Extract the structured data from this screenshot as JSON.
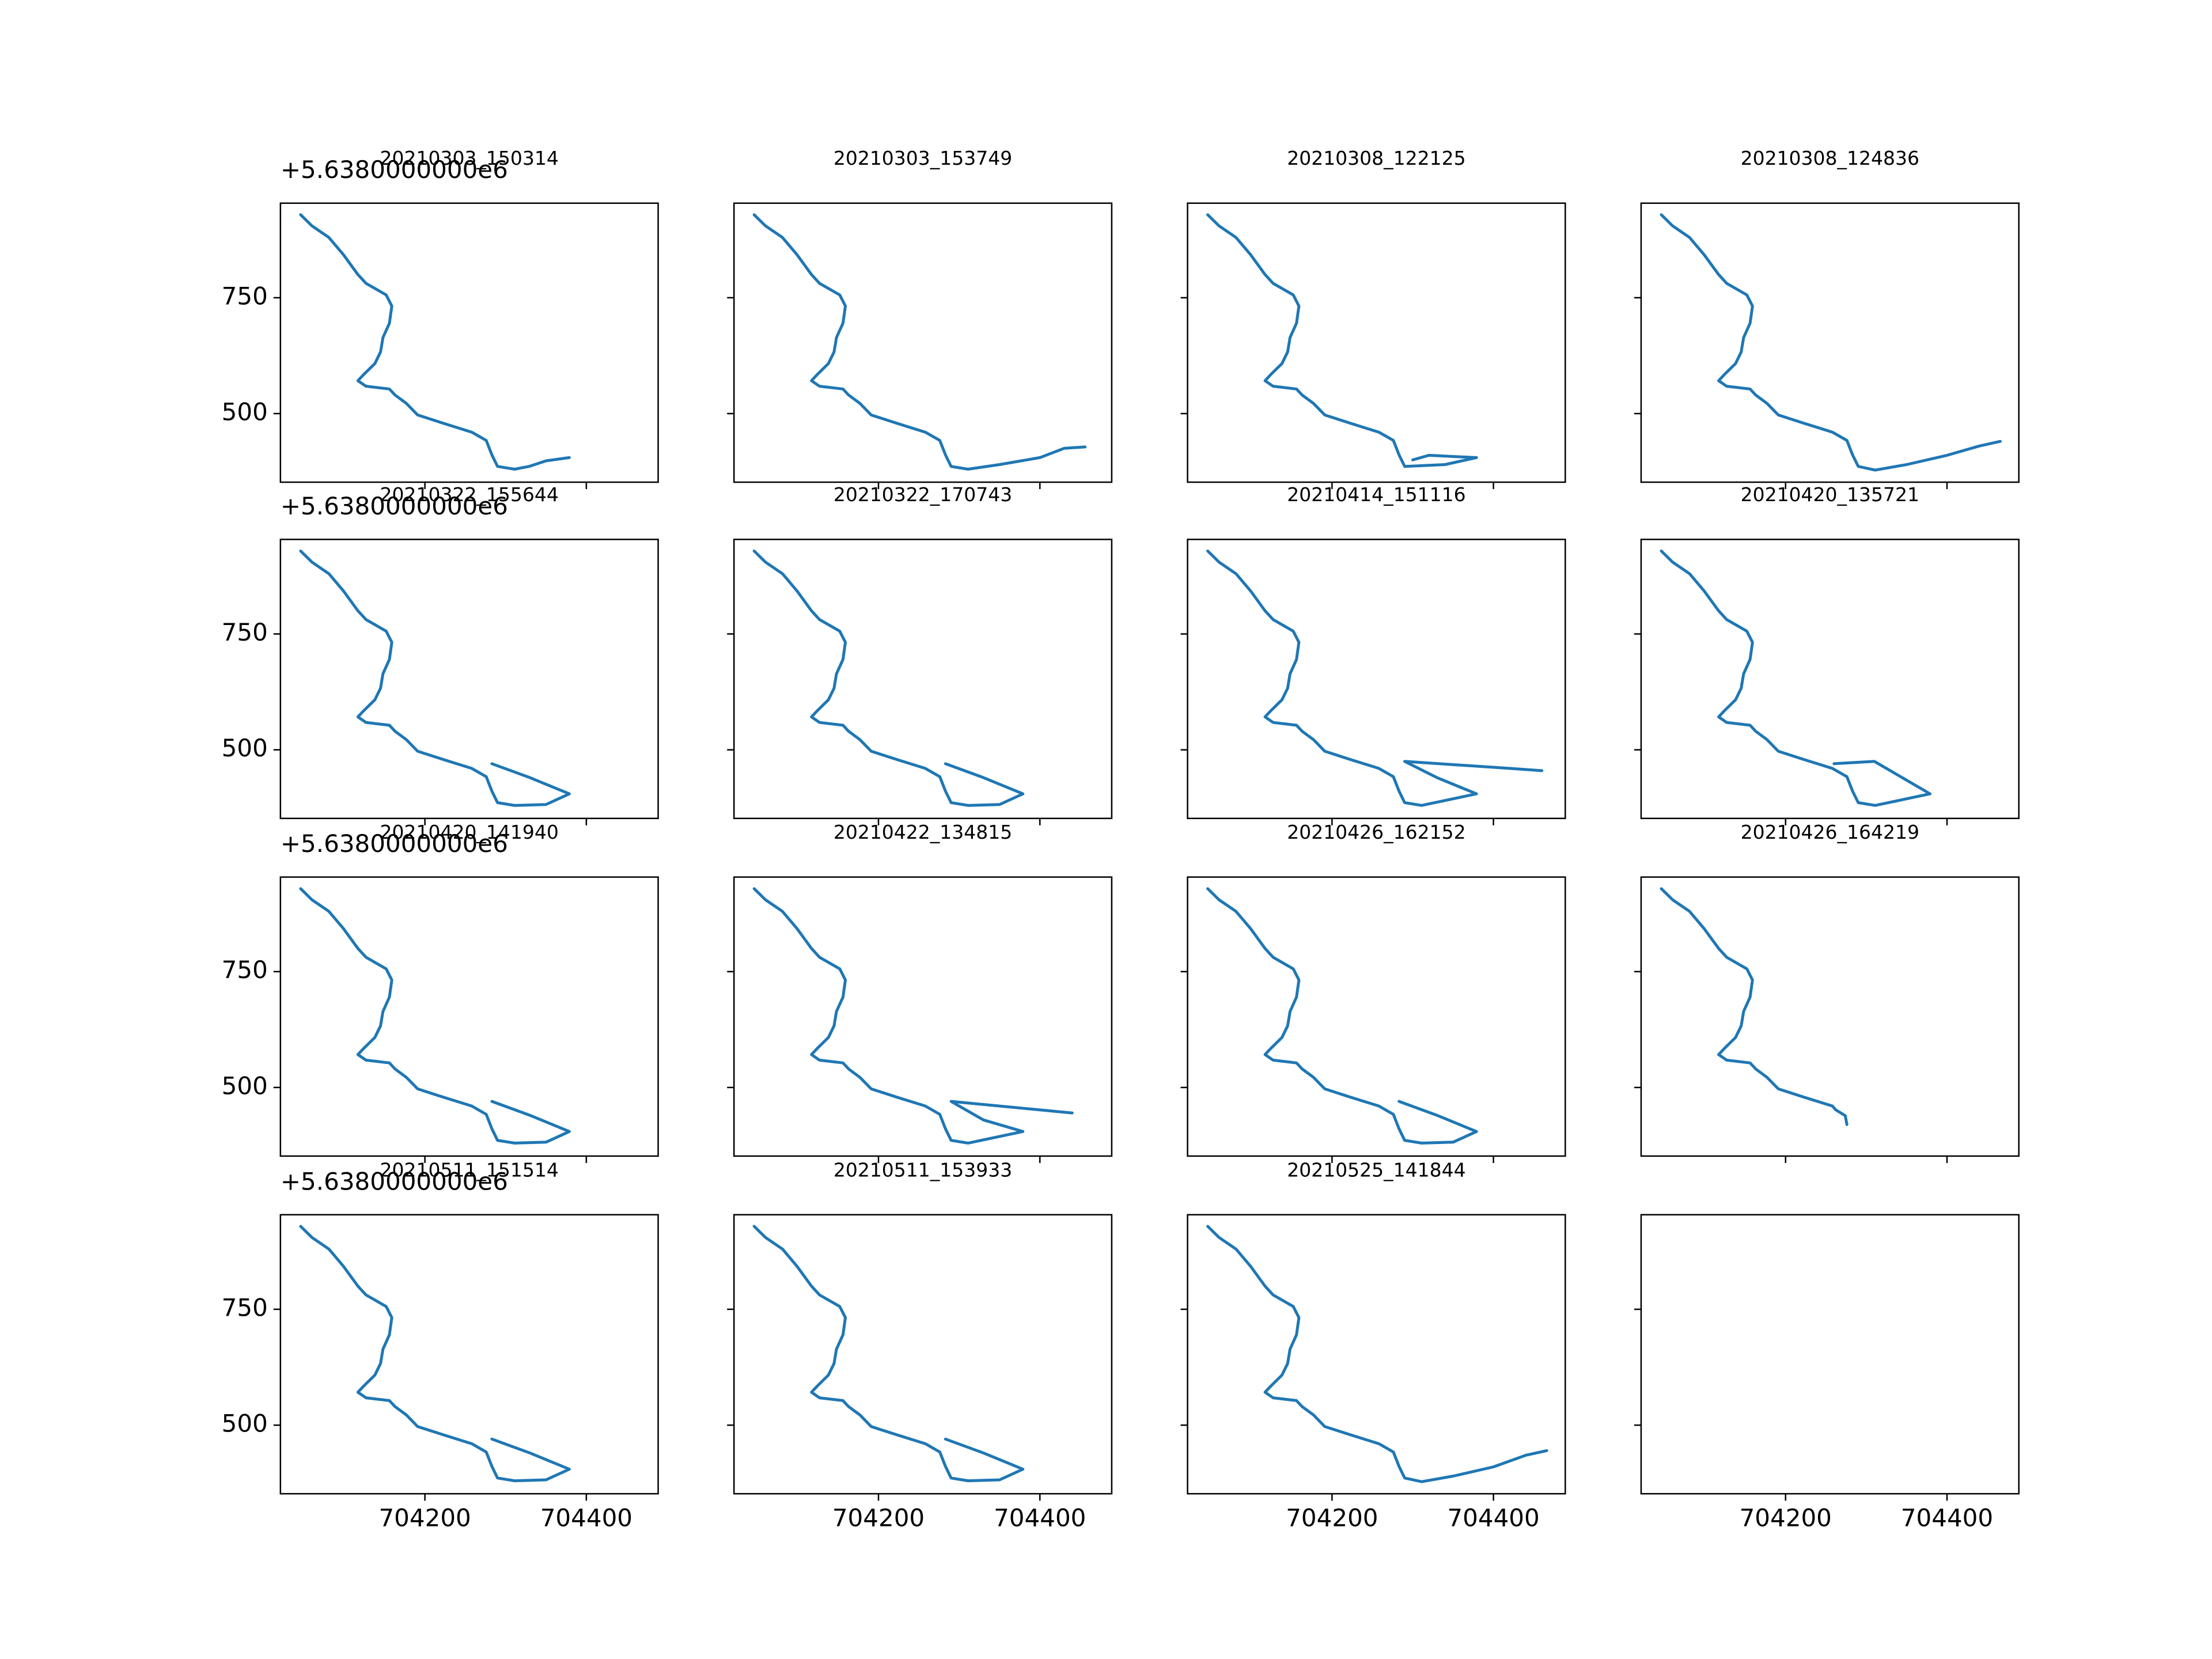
{
  "chart_data": [
    {
      "type": "line",
      "title": "20210303_150314",
      "offset_text": "+5.6380000000e6",
      "color": "#1f77b4",
      "x": [
        704046,
        704060,
        704081,
        704099,
        704117,
        704127,
        704152,
        704159,
        704156,
        704148,
        704145,
        704138,
        704124,
        704117,
        704127,
        704156,
        704163,
        704177,
        704191,
        704223,
        704258,
        704276,
        704283,
        704290,
        704311,
        704329,
        704350,
        704379
      ],
      "y": [
        929,
        905,
        880,
        843,
        800,
        781,
        756,
        732,
        695,
        664,
        633,
        608,
        584,
        571,
        559,
        553,
        540,
        522,
        497,
        479,
        460,
        442,
        411,
        386,
        380,
        386,
        398,
        405
      ],
      "xlim": [
        704021,
        704489
      ],
      "ylim": [
        352,
        954
      ],
      "xticks": [
        704200,
        704400
      ],
      "yticks": [
        500,
        750
      ]
    },
    {
      "type": "line",
      "title": "20210303_153749",
      "color": "#1f77b4",
      "x": [
        704046,
        704060,
        704081,
        704099,
        704117,
        704127,
        704152,
        704159,
        704156,
        704148,
        704145,
        704138,
        704124,
        704117,
        704127,
        704156,
        704163,
        704177,
        704191,
        704223,
        704258,
        704276,
        704283,
        704290,
        704311,
        704350,
        704400,
        704430,
        704456
      ],
      "y": [
        929,
        905,
        880,
        843,
        800,
        781,
        756,
        732,
        695,
        664,
        633,
        608,
        584,
        571,
        559,
        553,
        540,
        522,
        497,
        479,
        460,
        442,
        411,
        386,
        380,
        390,
        405,
        425,
        428
      ],
      "xlim": [
        704021,
        704489
      ],
      "ylim": [
        352,
        954
      ],
      "xticks": [
        704200,
        704400
      ],
      "yticks": [
        500,
        750
      ]
    },
    {
      "type": "line",
      "title": "20210308_122125",
      "color": "#1f77b4",
      "x": [
        704046,
        704060,
        704081,
        704099,
        704117,
        704127,
        704152,
        704159,
        704156,
        704148,
        704145,
        704138,
        704124,
        704117,
        704127,
        704156,
        704163,
        704177,
        704191,
        704223,
        704258,
        704276,
        704283,
        704290,
        704340,
        704379,
        704320,
        704300
      ],
      "y": [
        929,
        905,
        880,
        843,
        800,
        781,
        756,
        732,
        695,
        664,
        633,
        608,
        584,
        571,
        559,
        553,
        540,
        522,
        497,
        479,
        460,
        442,
        411,
        386,
        390,
        405,
        410,
        400
      ],
      "xlim": [
        704021,
        704489
      ],
      "ylim": [
        352,
        954
      ],
      "xticks": [
        704200,
        704400
      ],
      "yticks": [
        500,
        750
      ]
    },
    {
      "type": "line",
      "title": "20210308_124836",
      "color": "#1f77b4",
      "x": [
        704046,
        704060,
        704081,
        704099,
        704117,
        704127,
        704152,
        704159,
        704156,
        704148,
        704145,
        704138,
        704124,
        704117,
        704127,
        704156,
        704163,
        704177,
        704191,
        704223,
        704258,
        704276,
        704283,
        704290,
        704311,
        704350,
        704400,
        704440,
        704466
      ],
      "y": [
        929,
        905,
        880,
        843,
        800,
        781,
        756,
        732,
        695,
        664,
        633,
        608,
        584,
        571,
        559,
        553,
        540,
        522,
        497,
        479,
        460,
        442,
        411,
        386,
        378,
        390,
        410,
        430,
        440
      ],
      "xlim": [
        704021,
        704489
      ],
      "ylim": [
        352,
        954
      ],
      "xticks": [
        704200,
        704400
      ],
      "yticks": [
        500,
        750
      ]
    },
    {
      "type": "line",
      "title": "20210322_155644",
      "offset_text": "+5.6380000000e6",
      "color": "#1f77b4",
      "x": [
        704046,
        704060,
        704081,
        704099,
        704117,
        704127,
        704152,
        704159,
        704156,
        704148,
        704145,
        704138,
        704124,
        704117,
        704127,
        704156,
        704163,
        704177,
        704191,
        704223,
        704258,
        704276,
        704283,
        704290,
        704311,
        704350,
        704379,
        704330,
        704283
      ],
      "y": [
        929,
        905,
        880,
        843,
        800,
        781,
        756,
        732,
        695,
        664,
        633,
        608,
        584,
        571,
        559,
        553,
        540,
        522,
        497,
        479,
        460,
        442,
        411,
        386,
        380,
        382,
        405,
        440,
        470
      ],
      "xlim": [
        704021,
        704489
      ],
      "ylim": [
        352,
        954
      ],
      "xticks": [
        704200,
        704400
      ],
      "yticks": [
        500,
        750
      ]
    },
    {
      "type": "line",
      "title": "20210322_170743",
      "color": "#1f77b4",
      "x": [
        704046,
        704060,
        704081,
        704099,
        704117,
        704127,
        704152,
        704159,
        704156,
        704148,
        704145,
        704138,
        704124,
        704117,
        704127,
        704156,
        704163,
        704177,
        704191,
        704223,
        704258,
        704276,
        704283,
        704290,
        704311,
        704350,
        704379,
        704330,
        704283
      ],
      "y": [
        929,
        905,
        880,
        843,
        800,
        781,
        756,
        732,
        695,
        664,
        633,
        608,
        584,
        571,
        559,
        553,
        540,
        522,
        497,
        479,
        460,
        442,
        411,
        386,
        380,
        382,
        405,
        440,
        470
      ],
      "xlim": [
        704021,
        704489
      ],
      "ylim": [
        352,
        954
      ],
      "xticks": [
        704200,
        704400
      ],
      "yticks": [
        500,
        750
      ]
    },
    {
      "type": "line",
      "title": "20210414_151116",
      "color": "#1f77b4",
      "x": [
        704046,
        704060,
        704081,
        704099,
        704117,
        704127,
        704152,
        704159,
        704156,
        704148,
        704145,
        704138,
        704124,
        704117,
        704127,
        704156,
        704163,
        704177,
        704191,
        704223,
        704258,
        704276,
        704283,
        704290,
        704311,
        704379,
        704330,
        704290,
        704420,
        704460
      ],
      "y": [
        929,
        905,
        880,
        843,
        800,
        781,
        756,
        732,
        695,
        664,
        633,
        608,
        584,
        571,
        559,
        553,
        540,
        522,
        497,
        479,
        460,
        442,
        411,
        386,
        380,
        405,
        440,
        475,
        460,
        455
      ],
      "xlim": [
        704021,
        704489
      ],
      "ylim": [
        352,
        954
      ],
      "xticks": [
        704200,
        704400
      ],
      "yticks": [
        500,
        750
      ]
    },
    {
      "type": "line",
      "title": "20210420_135721",
      "color": "#1f77b4",
      "x": [
        704046,
        704060,
        704081,
        704099,
        704117,
        704127,
        704152,
        704159,
        704156,
        704148,
        704145,
        704138,
        704124,
        704117,
        704127,
        704156,
        704163,
        704177,
        704191,
        704223,
        704258,
        704276,
        704283,
        704290,
        704311,
        704379,
        704310,
        704260
      ],
      "y": [
        929,
        905,
        880,
        843,
        800,
        781,
        756,
        732,
        695,
        664,
        633,
        608,
        584,
        571,
        559,
        553,
        540,
        522,
        497,
        479,
        460,
        442,
        411,
        386,
        380,
        405,
        475,
        470
      ],
      "xlim": [
        704021,
        704489
      ],
      "ylim": [
        352,
        954
      ],
      "xticks": [
        704200,
        704400
      ],
      "yticks": [
        500,
        750
      ]
    },
    {
      "type": "line",
      "title": "20210420_141940",
      "offset_text": "+5.6380000000e6",
      "color": "#1f77b4",
      "x": [
        704046,
        704060,
        704081,
        704099,
        704117,
        704127,
        704152,
        704159,
        704156,
        704148,
        704145,
        704138,
        704124,
        704117,
        704127,
        704156,
        704163,
        704177,
        704191,
        704223,
        704258,
        704276,
        704283,
        704290,
        704311,
        704350,
        704379,
        704330,
        704283
      ],
      "y": [
        929,
        905,
        880,
        843,
        800,
        781,
        756,
        732,
        695,
        664,
        633,
        608,
        584,
        571,
        559,
        553,
        540,
        522,
        497,
        479,
        460,
        442,
        411,
        386,
        380,
        382,
        405,
        440,
        470
      ],
      "xlim": [
        704021,
        704489
      ],
      "ylim": [
        352,
        954
      ],
      "xticks": [
        704200,
        704400
      ],
      "yticks": [
        500,
        750
      ]
    },
    {
      "type": "line",
      "title": "20210422_134815",
      "color": "#1f77b4",
      "x": [
        704046,
        704060,
        704081,
        704099,
        704117,
        704127,
        704152,
        704159,
        704156,
        704148,
        704145,
        704138,
        704124,
        704117,
        704127,
        704156,
        704163,
        704177,
        704191,
        704223,
        704258,
        704276,
        704283,
        704290,
        704311,
        704379,
        704330,
        704290,
        704440
      ],
      "y": [
        929,
        905,
        880,
        843,
        800,
        781,
        756,
        732,
        695,
        664,
        633,
        608,
        584,
        571,
        559,
        553,
        540,
        522,
        497,
        479,
        460,
        442,
        411,
        386,
        380,
        405,
        430,
        470,
        445
      ],
      "xlim": [
        704021,
        704489
      ],
      "ylim": [
        352,
        954
      ],
      "xticks": [
        704200,
        704400
      ],
      "yticks": [
        500,
        750
      ]
    },
    {
      "type": "line",
      "title": "20210426_162152",
      "color": "#1f77b4",
      "x": [
        704046,
        704060,
        704081,
        704099,
        704117,
        704127,
        704152,
        704159,
        704156,
        704148,
        704145,
        704138,
        704124,
        704117,
        704127,
        704156,
        704163,
        704177,
        704191,
        704223,
        704258,
        704276,
        704283,
        704290,
        704311,
        704350,
        704379,
        704330,
        704283
      ],
      "y": [
        929,
        905,
        880,
        843,
        800,
        781,
        756,
        732,
        695,
        664,
        633,
        608,
        584,
        571,
        559,
        553,
        540,
        522,
        497,
        479,
        460,
        442,
        411,
        386,
        380,
        382,
        405,
        440,
        470
      ],
      "xlim": [
        704021,
        704489
      ],
      "ylim": [
        352,
        954
      ],
      "xticks": [
        704200,
        704400
      ],
      "yticks": [
        500,
        750
      ]
    },
    {
      "type": "line",
      "title": "20210426_164219",
      "color": "#1f77b4",
      "x": [
        704046,
        704060,
        704081,
        704099,
        704117,
        704127,
        704152,
        704159,
        704156,
        704148,
        704145,
        704138,
        704124,
        704117,
        704127,
        704156,
        704163,
        704177,
        704191,
        704223,
        704258,
        704262,
        704274,
        704276
      ],
      "y": [
        929,
        905,
        880,
        843,
        800,
        781,
        756,
        732,
        695,
        664,
        633,
        608,
        584,
        571,
        559,
        553,
        540,
        522,
        497,
        479,
        460,
        452,
        439,
        420
      ],
      "xlim": [
        704021,
        704489
      ],
      "ylim": [
        352,
        954
      ],
      "xticks": [
        704200,
        704400
      ],
      "yticks": [
        500,
        750
      ]
    },
    {
      "type": "line",
      "title": "20210511_151514",
      "offset_text": "+5.6380000000e6",
      "color": "#1f77b4",
      "x": [
        704046,
        704060,
        704081,
        704099,
        704117,
        704127,
        704152,
        704159,
        704156,
        704148,
        704145,
        704138,
        704124,
        704117,
        704127,
        704156,
        704163,
        704177,
        704191,
        704223,
        704258,
        704276,
        704283,
        704290,
        704311,
        704350,
        704379,
        704330,
        704283
      ],
      "y": [
        929,
        905,
        880,
        843,
        800,
        781,
        756,
        732,
        695,
        664,
        633,
        608,
        584,
        571,
        559,
        553,
        540,
        522,
        497,
        479,
        460,
        442,
        411,
        386,
        380,
        382,
        405,
        440,
        470
      ],
      "xlim": [
        704021,
        704489
      ],
      "ylim": [
        352,
        954
      ],
      "xticks": [
        704200,
        704400
      ],
      "yticks": [
        500,
        750
      ]
    },
    {
      "type": "line",
      "title": "20210511_153933",
      "color": "#1f77b4",
      "x": [
        704046,
        704060,
        704081,
        704099,
        704117,
        704127,
        704152,
        704159,
        704156,
        704148,
        704145,
        704138,
        704124,
        704117,
        704127,
        704156,
        704163,
        704177,
        704191,
        704223,
        704258,
        704276,
        704283,
        704290,
        704311,
        704350,
        704379,
        704330,
        704283
      ],
      "y": [
        929,
        905,
        880,
        843,
        800,
        781,
        756,
        732,
        695,
        664,
        633,
        608,
        584,
        571,
        559,
        553,
        540,
        522,
        497,
        479,
        460,
        442,
        411,
        386,
        380,
        382,
        405,
        440,
        470
      ],
      "xlim": [
        704021,
        704489
      ],
      "ylim": [
        352,
        954
      ],
      "xticks": [
        704200,
        704400
      ],
      "yticks": [
        500,
        750
      ]
    },
    {
      "type": "line",
      "title": "20210525_141844",
      "color": "#1f77b4",
      "x": [
        704046,
        704060,
        704081,
        704099,
        704117,
        704127,
        704152,
        704159,
        704156,
        704148,
        704145,
        704138,
        704124,
        704117,
        704127,
        704156,
        704163,
        704177,
        704191,
        704223,
        704258,
        704276,
        704283,
        704290,
        704311,
        704350,
        704400,
        704440,
        704466
      ],
      "y": [
        929,
        905,
        880,
        843,
        800,
        781,
        756,
        732,
        695,
        664,
        633,
        608,
        584,
        571,
        559,
        553,
        540,
        522,
        497,
        479,
        460,
        442,
        411,
        386,
        378,
        390,
        410,
        435,
        445
      ],
      "xlim": [
        704021,
        704489
      ],
      "ylim": [
        352,
        954
      ],
      "xticks": [
        704200,
        704400
      ],
      "yticks": [
        500,
        750
      ]
    },
    {
      "type": "line",
      "xlim": [
        704021,
        704489
      ],
      "ylim": [
        352,
        954
      ],
      "xticks": [
        704200,
        704400
      ],
      "yticks": [
        500,
        750
      ]
    }
  ]
}
